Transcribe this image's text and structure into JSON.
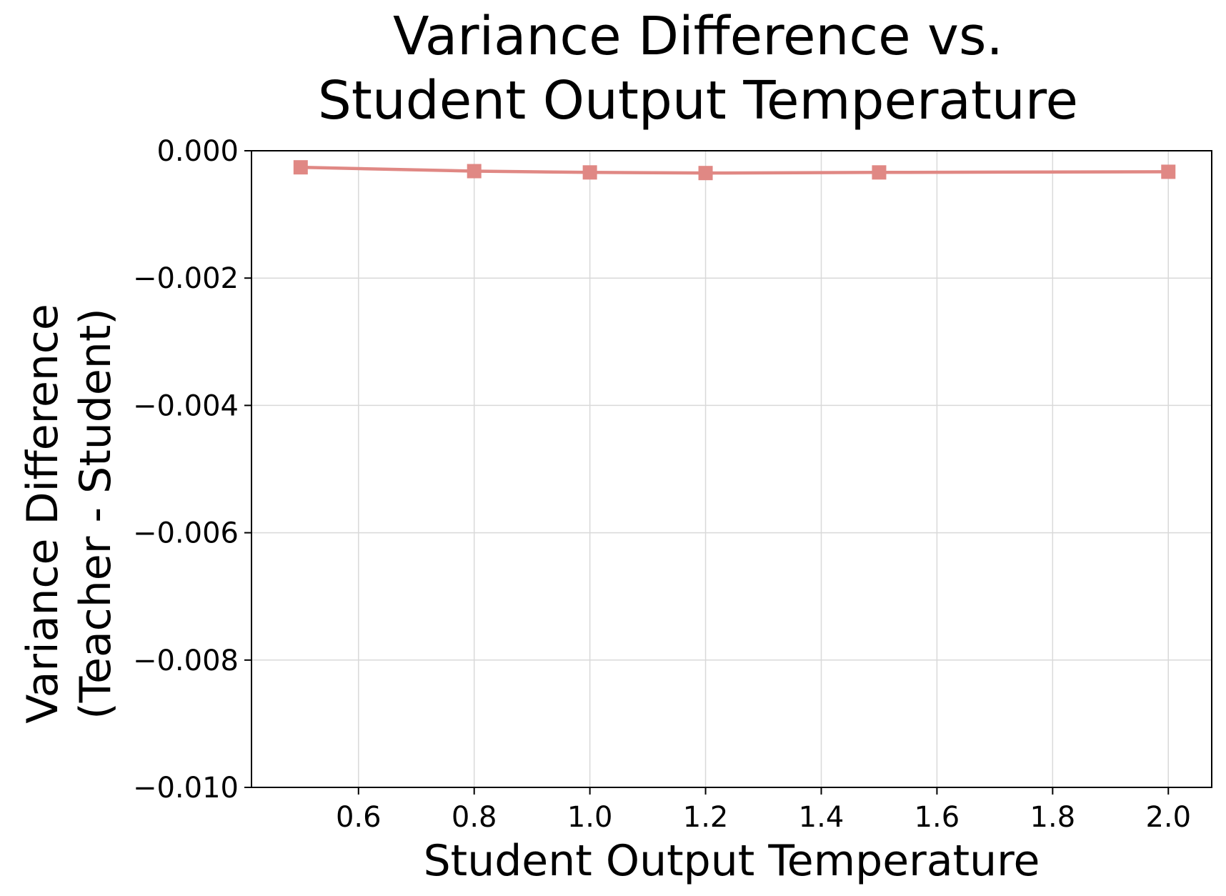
{
  "chart_data": {
    "type": "line",
    "title_lines": [
      "Variance Difference vs.",
      "Student Output Temperature"
    ],
    "xlabel": "Student Output Temperature",
    "ylabel_lines": [
      "Variance Difference",
      "(Teacher - Student)"
    ],
    "xlim": [
      0.415,
      2.075
    ],
    "ylim": [
      -0.01,
      0.0
    ],
    "xticks": [
      0.6,
      0.8,
      1.0,
      1.2,
      1.4,
      1.6,
      1.8,
      2.0
    ],
    "xtick_labels": [
      "0.6",
      "0.8",
      "1.0",
      "1.2",
      "1.4",
      "1.6",
      "1.8",
      "2.0"
    ],
    "yticks": [
      0.0,
      -0.002,
      -0.004,
      -0.006,
      -0.008,
      -0.01
    ],
    "ytick_labels": [
      "0.000",
      "−0.002",
      "−0.004",
      "−0.006",
      "−0.008",
      "−0.010"
    ],
    "grid": true,
    "series": [
      {
        "color": "#e08884",
        "marker": "square",
        "x": [
          0.5,
          0.8,
          1.0,
          1.2,
          1.5,
          2.0
        ],
        "y": [
          -0.00026,
          -0.00032,
          -0.00034,
          -0.00035,
          -0.00034,
          -0.00033
        ]
      }
    ]
  }
}
